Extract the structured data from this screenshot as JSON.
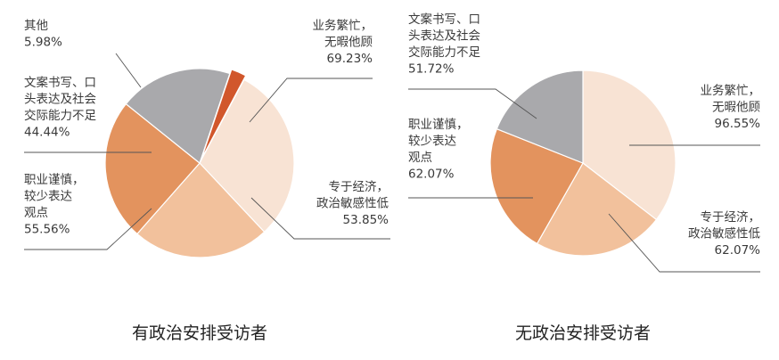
{
  "chart_data": [
    {
      "type": "pie",
      "title": "有政治安排受访者",
      "colors": [
        "#f8e3d4",
        "#f2c19c",
        "#e3935e",
        "#a9a9ac",
        "#d1572c"
      ],
      "slices": [
        {
          "label_lines": [
            "业务繁忙，",
            "无暇他顾"
          ],
          "value_text": "69.23%",
          "value": 69.23
        },
        {
          "label_lines": [
            "专于经济，",
            "政治敏感性低"
          ],
          "value_text": "53.85%",
          "value": 53.85
        },
        {
          "label_lines": [
            "职业谨慎，",
            "较少表达",
            "观点"
          ],
          "value_text": "55.56%",
          "value": 55.56
        },
        {
          "label_lines": [
            "文案书写、口",
            "头表达及社会",
            "交际能力不足"
          ],
          "value_text": "44.44%",
          "value": 44.44
        },
        {
          "label_lines": [
            "其他"
          ],
          "value_text": "5.98%",
          "value": 5.98
        }
      ]
    },
    {
      "type": "pie",
      "title": "无政治安排受访者",
      "colors": [
        "#f8e3d4",
        "#f2c19c",
        "#e3935e",
        "#a9a9ac"
      ],
      "slices": [
        {
          "label_lines": [
            "业务繁忙，",
            "无暇他顾"
          ],
          "value_text": "96.55%",
          "value": 96.55
        },
        {
          "label_lines": [
            "专于经济，",
            "政治敏感性低"
          ],
          "value_text": "62.07%",
          "value": 62.07
        },
        {
          "label_lines": [
            "职业谨慎，",
            "较少表达",
            "观点"
          ],
          "value_text": "62.07%",
          "value": 62.07
        },
        {
          "label_lines": [
            "文案书写、口",
            "头表达及社会",
            "交际能力不足"
          ],
          "value_text": "51.72%",
          "value": 51.72
        }
      ]
    }
  ]
}
